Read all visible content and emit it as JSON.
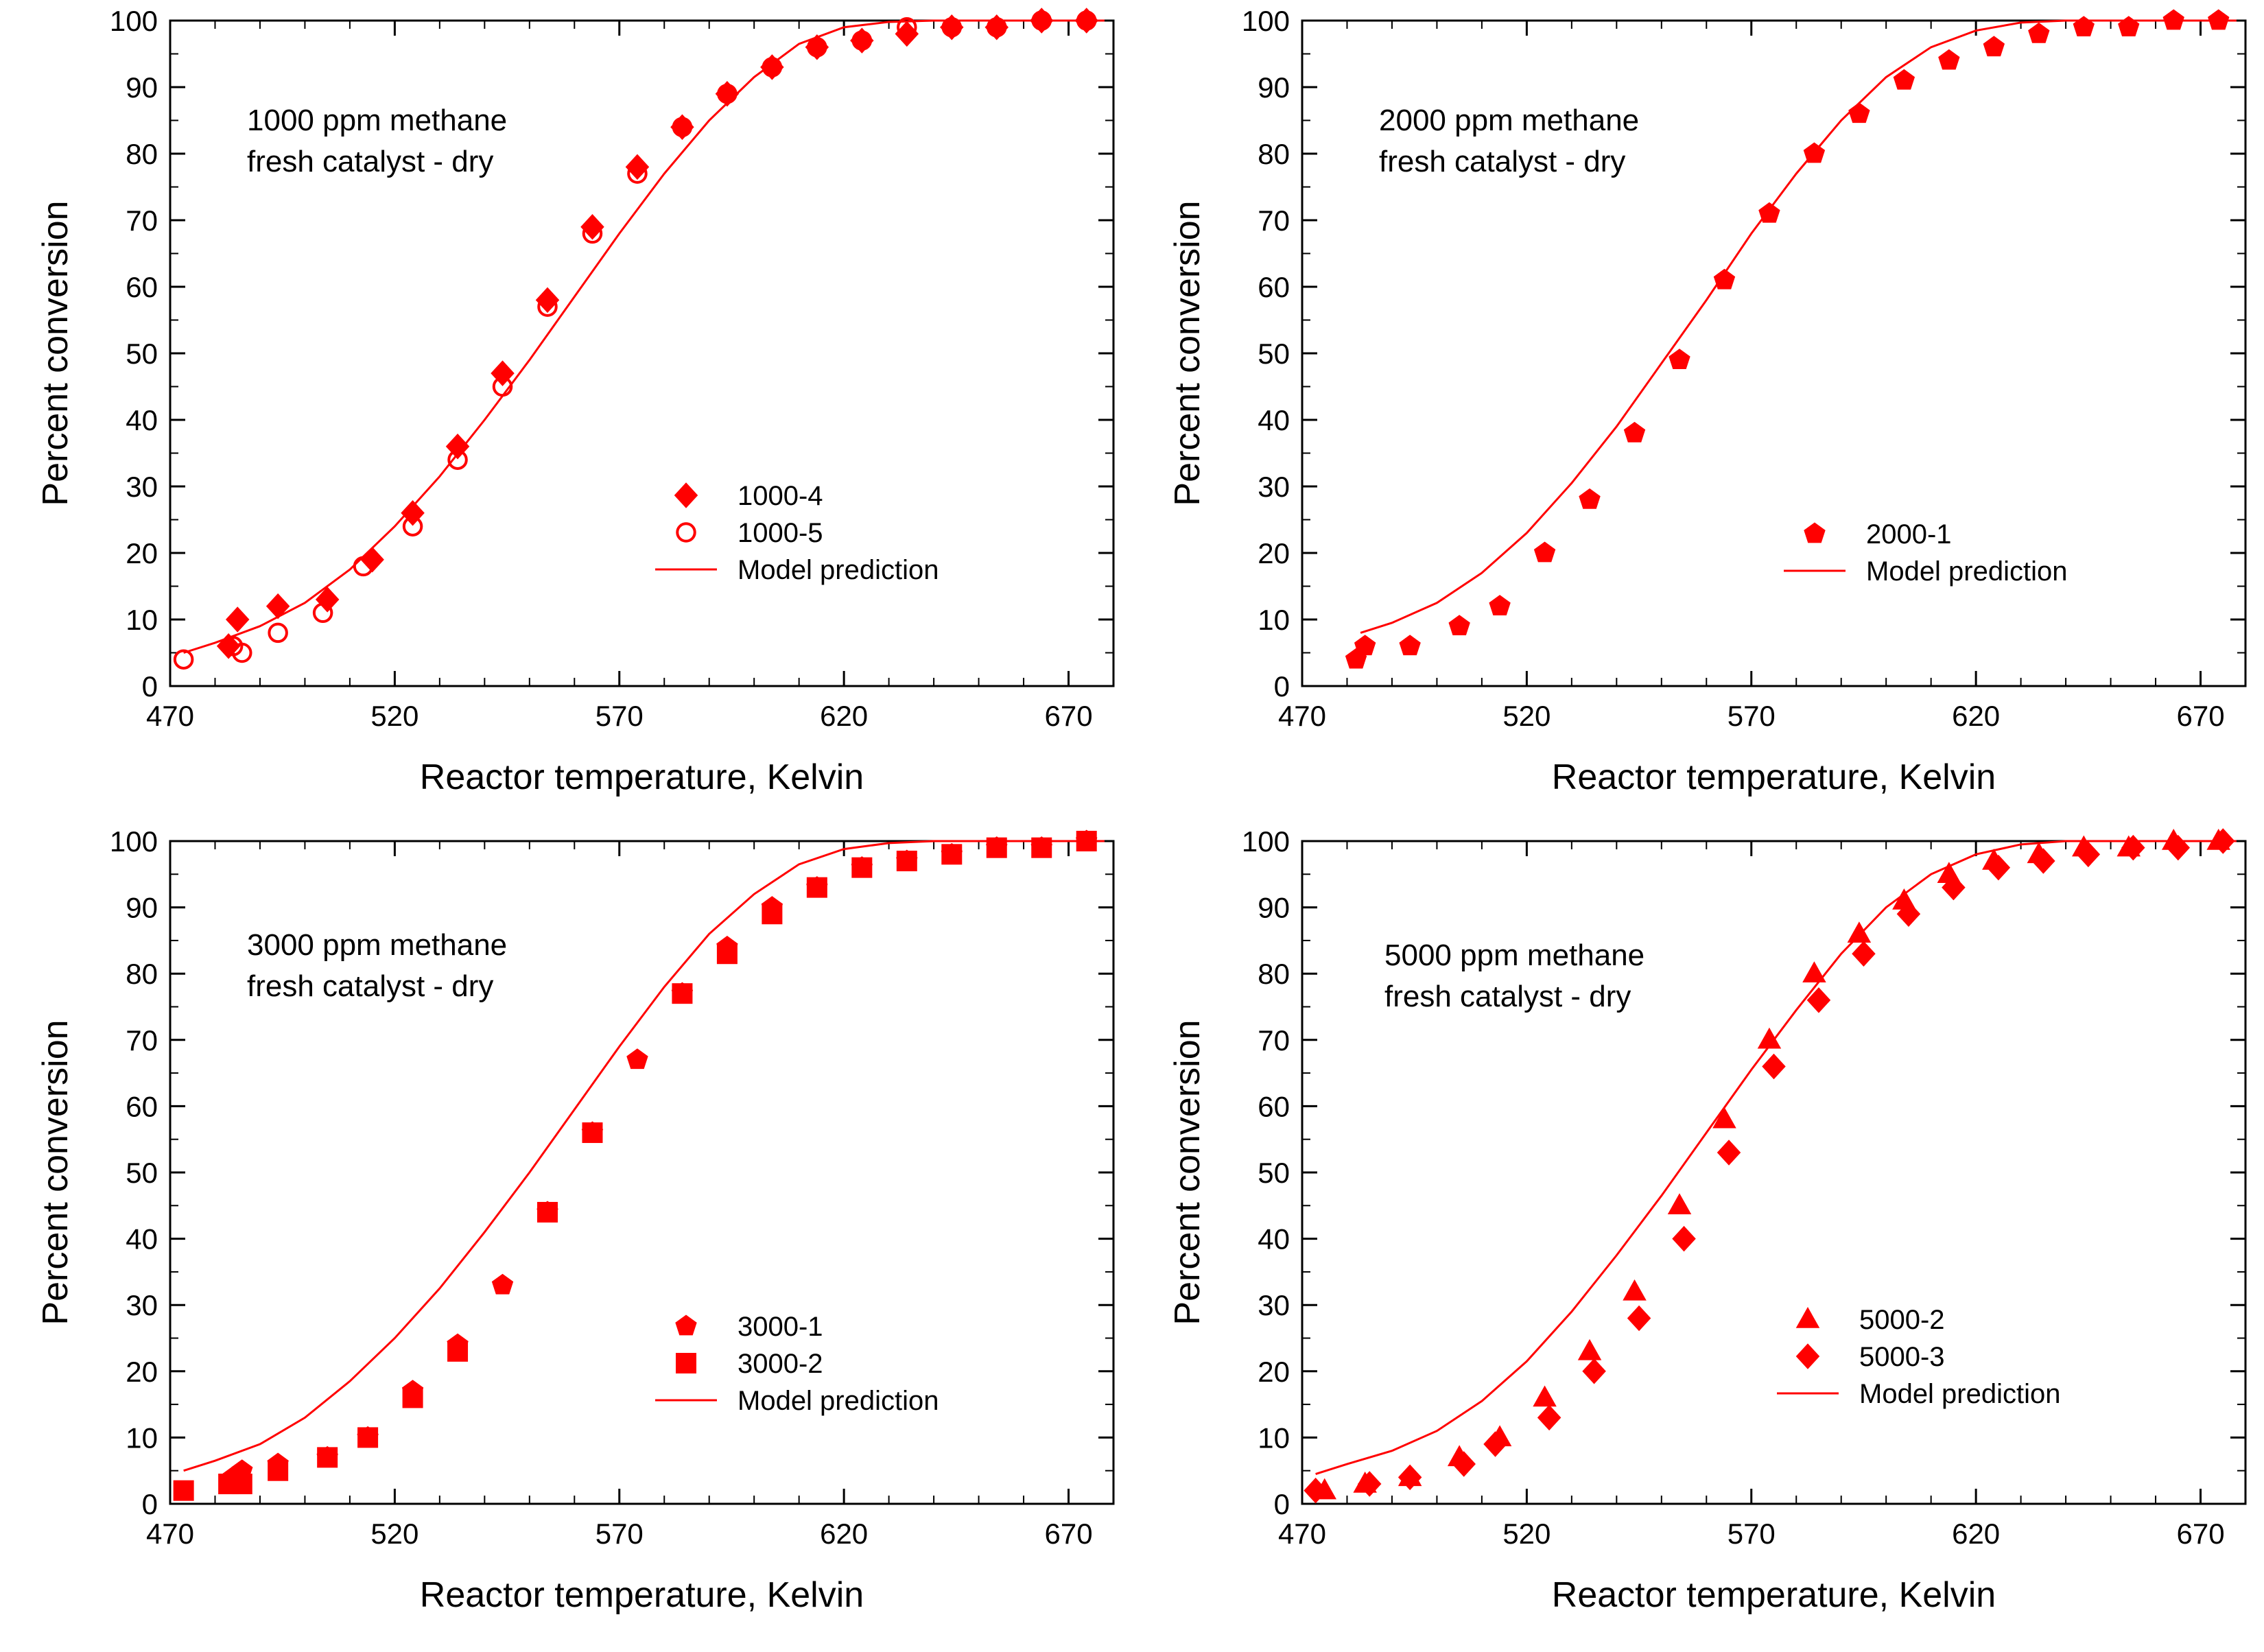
{
  "colors": {
    "data": "#ff0000",
    "frame": "#000000"
  },
  "chart_data": [
    {
      "type": "scatter",
      "xlabel": "Reactor temperature, Kelvin",
      "ylabel": "Percent conversion",
      "xlim": [
        470,
        680
      ],
      "ylim": [
        0,
        100
      ],
      "xticks": [
        470,
        520,
        570,
        620,
        670
      ],
      "yticks": [
        0,
        10,
        20,
        30,
        40,
        50,
        60,
        70,
        80,
        90,
        100
      ],
      "annotation": [
        "1000 ppm methane",
        "fresh catalyst - dry"
      ],
      "series": [
        {
          "name": "1000-4",
          "marker": "diamond",
          "x": [
            483,
            485,
            494,
            505,
            515,
            524,
            534,
            544,
            554,
            564,
            574,
            584,
            594,
            604,
            614,
            624,
            634,
            644,
            654,
            664,
            674
          ],
          "y": [
            6,
            10,
            12,
            13,
            19,
            26,
            36,
            47,
            58,
            69,
            78,
            84,
            89,
            93,
            96,
            97,
            98,
            99,
            99,
            100,
            100
          ]
        },
        {
          "name": "1000-5",
          "marker": "circle-open",
          "x": [
            473,
            484,
            486,
            494,
            504,
            513,
            524,
            534,
            544,
            554,
            564,
            574,
            584,
            594,
            604,
            614,
            624,
            634,
            644,
            654,
            664,
            674
          ],
          "y": [
            4,
            6,
            5,
            8,
            11,
            18,
            24,
            34,
            45,
            57,
            68,
            77,
            84,
            89,
            93,
            96,
            97,
            99,
            99,
            99,
            100,
            100
          ]
        },
        {
          "name": "Model prediction",
          "marker": "line",
          "x": [
            473,
            480,
            490,
            500,
            510,
            520,
            530,
            540,
            550,
            560,
            570,
            580,
            590,
            600,
            610,
            620,
            630,
            640,
            650,
            660,
            670,
            678
          ],
          "y": [
            5,
            6.5,
            9,
            12.5,
            17.5,
            24,
            31.5,
            40,
            49,
            58.5,
            68,
            77,
            85,
            91.5,
            96.5,
            99,
            99.8,
            100,
            100,
            100,
            100,
            100
          ]
        }
      ],
      "legend": "center-right"
    },
    {
      "type": "scatter",
      "xlabel": "Reactor temperature, Kelvin",
      "ylabel": "Percent conversion",
      "xlim": [
        470,
        680
      ],
      "ylim": [
        0,
        100
      ],
      "xticks": [
        470,
        520,
        570,
        620,
        670
      ],
      "yticks": [
        0,
        10,
        20,
        30,
        40,
        50,
        60,
        70,
        80,
        90,
        100
      ],
      "annotation": [
        "2000 ppm methane",
        "fresh catalyst - dry"
      ],
      "series": [
        {
          "name": "2000-1",
          "marker": "pentagon",
          "x": [
            482,
            484,
            494,
            505,
            514,
            524,
            534,
            544,
            554,
            564,
            574,
            584,
            594,
            604,
            614,
            624,
            634,
            644,
            654,
            664,
            674
          ],
          "y": [
            4,
            6,
            6,
            9,
            12,
            20,
            28,
            38,
            49,
            61,
            71,
            80,
            86,
            91,
            94,
            96,
            98,
            99,
            99,
            100,
            100
          ]
        },
        {
          "name": "Model prediction",
          "marker": "line",
          "x": [
            483,
            490,
            500,
            510,
            520,
            530,
            540,
            550,
            560,
            570,
            580,
            590,
            600,
            610,
            620,
            630,
            640,
            650,
            660,
            670,
            678
          ],
          "y": [
            8,
            9.5,
            12.5,
            17,
            23,
            30.5,
            39,
            48.5,
            58,
            68,
            77,
            85,
            91.5,
            96,
            98.5,
            99.7,
            100,
            100,
            100,
            100,
            100
          ]
        }
      ],
      "legend": "center-right"
    },
    {
      "type": "scatter",
      "xlabel": "Reactor temperature, Kelvin",
      "ylabel": "Percent conversion",
      "xlim": [
        470,
        680
      ],
      "ylim": [
        0,
        100
      ],
      "xticks": [
        470,
        520,
        570,
        620,
        670
      ],
      "yticks": [
        0,
        10,
        20,
        30,
        40,
        50,
        60,
        70,
        80,
        90,
        100
      ],
      "annotation": [
        "3000 ppm methane",
        "fresh catalyst - dry"
      ],
      "series": [
        {
          "name": "3000-1",
          "marker": "pentagon",
          "x": [
            484,
            486,
            494,
            505,
            514,
            524,
            534,
            544,
            554,
            564,
            574,
            584,
            594,
            604,
            614,
            624,
            634,
            644,
            654,
            664,
            674
          ],
          "y": [
            4,
            5,
            6,
            7,
            10,
            17,
            24,
            33,
            44,
            56,
            67,
            77,
            84,
            90,
            93,
            96,
            97,
            98,
            99,
            99,
            100
          ]
        },
        {
          "name": "3000-2",
          "marker": "square",
          "x": [
            473,
            483,
            486,
            494,
            505,
            514,
            524,
            534,
            554,
            564,
            584,
            594,
            604,
            614,
            624,
            634,
            644,
            654,
            664,
            674
          ],
          "y": [
            2,
            3,
            3,
            5,
            7,
            10,
            16,
            23,
            44,
            56,
            77,
            83,
            89,
            93,
            96,
            97,
            98,
            99,
            99,
            100
          ]
        },
        {
          "name": "Model prediction",
          "marker": "line",
          "x": [
            473,
            480,
            490,
            500,
            510,
            520,
            530,
            540,
            550,
            560,
            570,
            580,
            590,
            600,
            610,
            620,
            630,
            640,
            650,
            660,
            670,
            678
          ],
          "y": [
            5,
            6.5,
            9,
            13,
            18.5,
            25,
            32.5,
            41,
            50,
            59.5,
            69,
            78,
            86,
            92,
            96.5,
            98.8,
            99.7,
            100,
            100,
            100,
            100,
            100
          ]
        }
      ],
      "legend": "center-right"
    },
    {
      "type": "scatter",
      "xlabel": "Reactor temperature, Kelvin",
      "ylabel": "Percent conversion",
      "xlim": [
        470,
        680
      ],
      "ylim": [
        0,
        100
      ],
      "xticks": [
        470,
        520,
        570,
        620,
        670
      ],
      "yticks": [
        0,
        10,
        20,
        30,
        40,
        50,
        60,
        70,
        80,
        90,
        100
      ],
      "annotation": [
        "5000 ppm methane",
        "fresh catalyst - dry"
      ],
      "series": [
        {
          "name": "5000-2",
          "marker": "triangle",
          "x": [
            475,
            484,
            494,
            505,
            514,
            524,
            534,
            544,
            554,
            564,
            574,
            584,
            594,
            604,
            614,
            624,
            634,
            644,
            654,
            664,
            674
          ],
          "y": [
            2,
            3,
            4,
            7,
            10,
            16,
            23,
            32,
            45,
            58,
            70,
            80,
            86,
            91,
            95,
            97,
            98,
            99,
            99,
            100,
            100
          ]
        },
        {
          "name": "5000-3",
          "marker": "diamond",
          "x": [
            473,
            485,
            494,
            506,
            513,
            525,
            535,
            545,
            555,
            565,
            575,
            585,
            595,
            605,
            615,
            625,
            635,
            645,
            655,
            665,
            675
          ],
          "y": [
            2,
            3,
            4,
            6,
            9,
            13,
            20,
            28,
            40,
            53,
            66,
            76,
            83,
            89,
            93,
            96,
            97,
            98,
            99,
            99,
            100
          ]
        },
        {
          "name": "Model prediction",
          "marker": "line",
          "x": [
            473,
            480,
            490,
            500,
            510,
            520,
            530,
            540,
            550,
            560,
            570,
            580,
            590,
            600,
            610,
            620,
            630,
            640,
            650,
            660,
            670,
            678
          ],
          "y": [
            4.5,
            6,
            8,
            11,
            15.5,
            21.5,
            29,
            37.5,
            46.5,
            56,
            65.5,
            74.5,
            83,
            90,
            95,
            98,
            99.5,
            100,
            100,
            100,
            100,
            100
          ]
        }
      ],
      "legend": "center-right"
    }
  ]
}
